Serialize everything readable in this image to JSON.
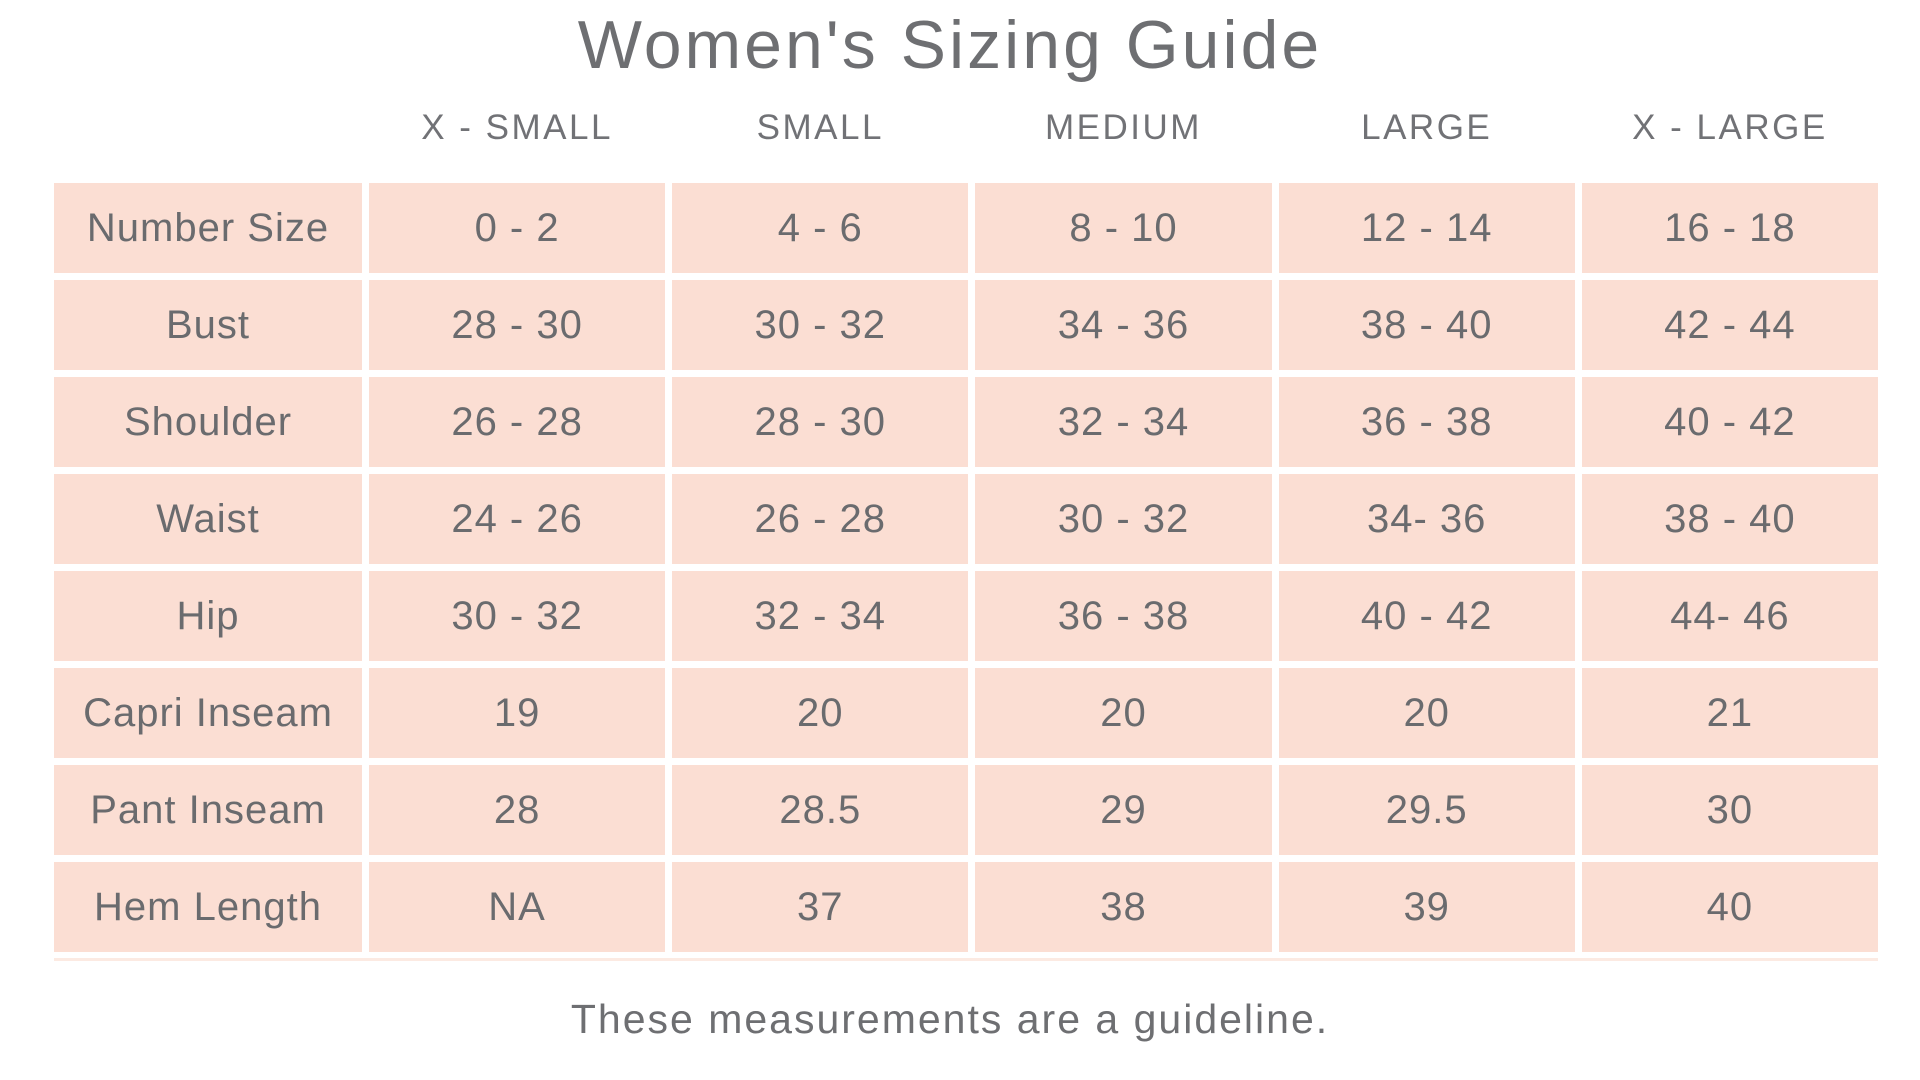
{
  "page": {
    "title": "Women's Sizing Guide",
    "footer": "These measurements are a guideline."
  },
  "colors": {
    "cell_background": "#FBDED3",
    "text_gray": "#6A6B6E",
    "heading_gray": "#6E6F72"
  },
  "table": {
    "columns": [
      "X - SMALL",
      "SMALL",
      "MEDIUM",
      "LARGE",
      "X - LARGE"
    ],
    "rows": [
      {
        "label": "Number Size",
        "values": [
          "0 - 2",
          "4 - 6",
          "8 - 10",
          "12 - 14",
          "16 - 18"
        ]
      },
      {
        "label": "Bust",
        "values": [
          "28 - 30",
          "30 - 32",
          "34 - 36",
          "38 - 40",
          "42 - 44"
        ]
      },
      {
        "label": "Shoulder",
        "values": [
          "26 - 28",
          "28 - 30",
          "32 - 34",
          "36 - 38",
          "40 - 42"
        ]
      },
      {
        "label": "Waist",
        "values": [
          "24 - 26",
          "26 - 28",
          "30 - 32",
          "34- 36",
          "38 - 40"
        ]
      },
      {
        "label": "Hip",
        "values": [
          "30 - 32",
          "32 - 34",
          "36 - 38",
          "40 - 42",
          "44- 46"
        ]
      },
      {
        "label": "Capri Inseam",
        "values": [
          "19",
          "20",
          "20",
          "20",
          "21"
        ]
      },
      {
        "label": "Pant Inseam",
        "values": [
          "28",
          "28.5",
          "29",
          "29.5",
          "30"
        ]
      },
      {
        "label": "Hem Length",
        "values": [
          "NA",
          "37",
          "38",
          "39",
          "40"
        ]
      }
    ]
  }
}
